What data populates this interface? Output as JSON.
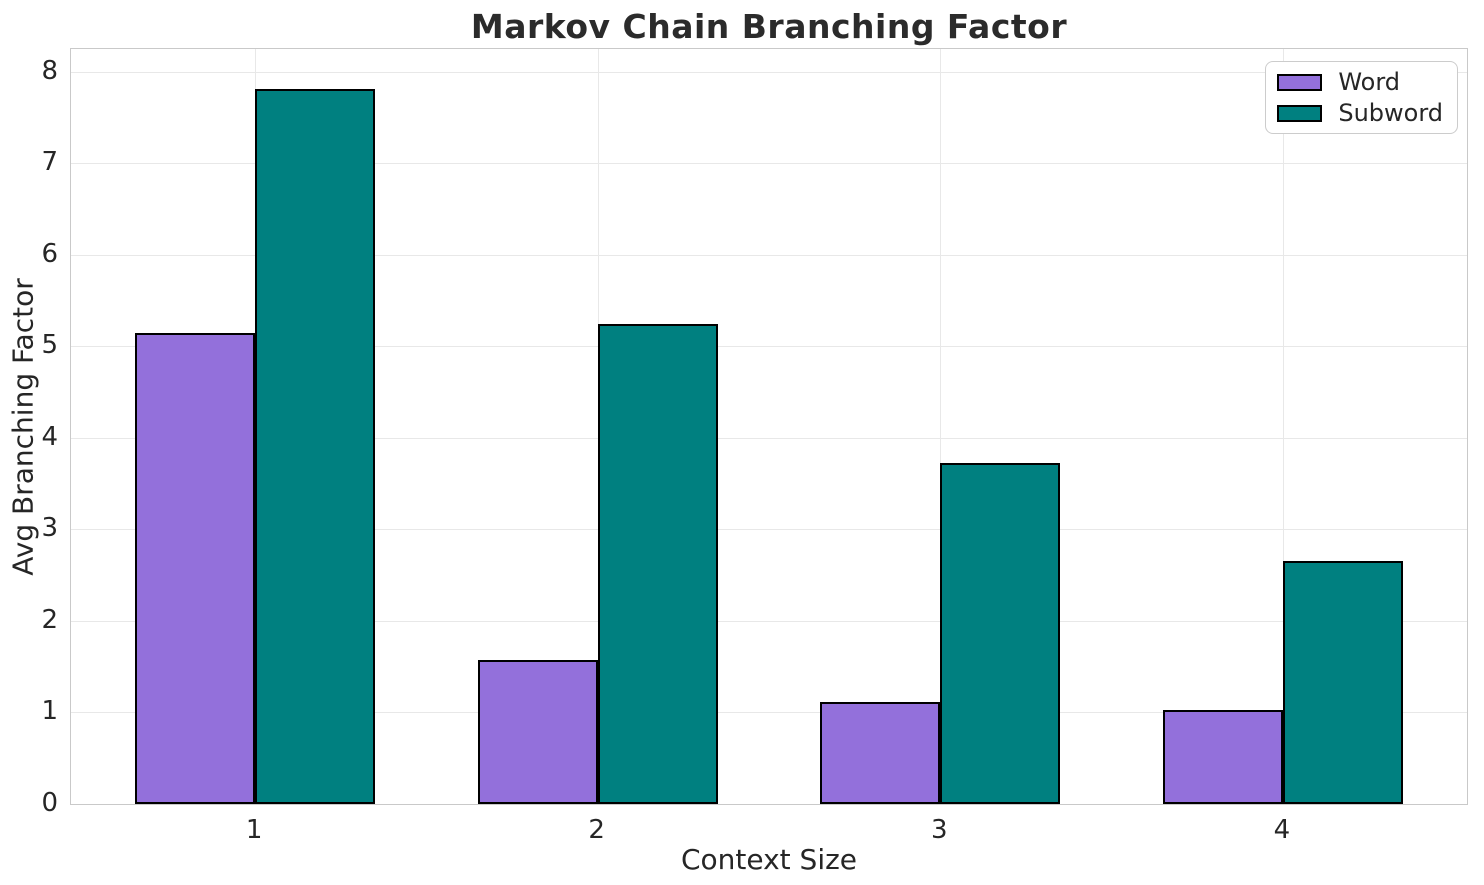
{
  "figure": {
    "background": "#ffffff",
    "text_color": "#262626",
    "grid_color": "#e8e8e8",
    "spine_color": "#c9c9c9"
  },
  "chart_data": {
    "type": "bar",
    "title": "Markov Chain Branching Factor",
    "xlabel": "Context Size",
    "ylabel": "Avg Branching Factor",
    "categories": [
      "1",
      "2",
      "3",
      "4"
    ],
    "series": [
      {
        "name": "Word",
        "color": "#9370DB",
        "values": [
          5.15,
          1.57,
          1.11,
          1.03
        ]
      },
      {
        "name": "Subword",
        "color": "#008080",
        "values": [
          7.81,
          5.24,
          3.73,
          2.65
        ]
      }
    ],
    "bar_edge_color": "#000000",
    "bar_width_units": 0.35,
    "xlim": [
      0.4625,
      4.5375
    ],
    "ylim": [
      0,
      8.25
    ],
    "yticks": [
      0,
      1,
      2,
      3,
      4,
      5,
      6,
      7,
      8
    ],
    "grid": true,
    "legend_position": "upper right"
  }
}
